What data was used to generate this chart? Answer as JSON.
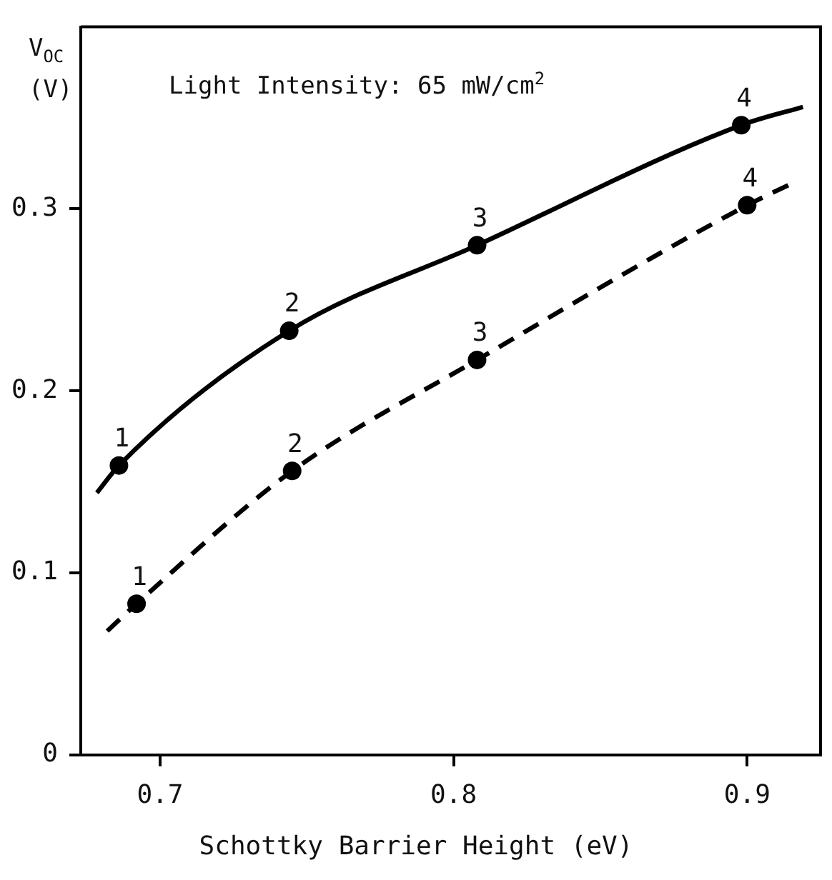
{
  "chart_data": {
    "type": "scatter",
    "xlabel": "Schottky Barrier Height (eV)",
    "ylabel": "V$_{OC}$ (V)",
    "xlim": [
      0.673,
      0.925
    ],
    "xticks": [
      0.7,
      0.8,
      0.9
    ],
    "ylim": [
      0,
      0.4
    ],
    "yticks": [
      0,
      0.1,
      0.2,
      0.3
    ],
    "grid": false,
    "legend": false,
    "marker": "circle",
    "series": [
      {
        "type": "line",
        "color": "#000000",
        "line_style": "solid",
        "marker": "none",
        "x": [
          0.6785,
          0.686,
          0.744,
          0.808,
          0.898,
          0.919
        ],
        "values": [
          0.144,
          0.159,
          0.233,
          0.28,
          0.346,
          0.356
        ]
      },
      {
        "type": "line",
        "color": "#000000",
        "line_style": "dashed",
        "marker": "none",
        "x": [
          0.682,
          0.692,
          0.745,
          0.808,
          0.9,
          0.914
        ],
        "values": [
          0.068,
          0.083,
          0.156,
          0.217,
          0.302,
          0.313
        ]
      },
      {
        "type": "scatter",
        "color": "#000000",
        "x": [
          0.686,
          0.744,
          0.808,
          0.898
        ],
        "values": [
          0.159,
          0.233,
          0.28,
          0.346
        ]
      },
      {
        "type": "scatter",
        "color": "#000000",
        "x": [
          0.692,
          0.745,
          0.808,
          0.9
        ],
        "values": [
          0.083,
          0.156,
          0.217,
          0.302
        ]
      }
    ],
    "annotations": [
      "Light Intensity: 65 mW/cm$^{2}$",
      {
        "text": "1",
        "x": 0.686,
        "y": 0.159
      },
      {
        "text": "2",
        "x": 0.744,
        "y": 0.233
      },
      {
        "text": "3",
        "x": 0.808,
        "y": 0.28
      },
      {
        "text": "4",
        "x": 0.898,
        "y": 0.346
      },
      {
        "text": "1",
        "x": 0.692,
        "y": 0.083
      },
      {
        "text": "2",
        "x": 0.745,
        "y": 0.156
      },
      {
        "text": "3",
        "x": 0.808,
        "y": 0.217
      },
      {
        "text": "4",
        "x": 0.9,
        "y": 0.302
      }
    ]
  }
}
